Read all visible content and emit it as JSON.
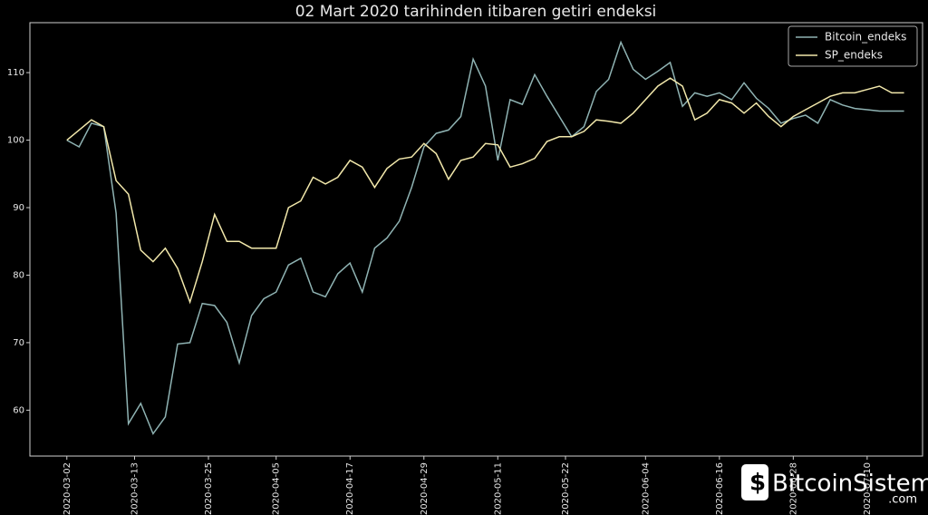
{
  "chart_data": {
    "type": "line",
    "title": "02 Mart 2020 tarihinden itibaren getiri endeksi",
    "x": [
      "2020-03-02",
      "2020-03-04",
      "2020-03-06",
      "2020-03-08",
      "2020-03-10",
      "2020-03-12",
      "2020-03-14",
      "2020-03-16",
      "2020-03-18",
      "2020-03-20",
      "2020-03-22",
      "2020-03-24",
      "2020-03-26",
      "2020-03-28",
      "2020-03-30",
      "2020-04-01",
      "2020-04-03",
      "2020-04-05",
      "2020-04-07",
      "2020-04-09",
      "2020-04-11",
      "2020-04-13",
      "2020-04-15",
      "2020-04-17",
      "2020-04-19",
      "2020-04-21",
      "2020-04-23",
      "2020-04-25",
      "2020-04-27",
      "2020-04-29",
      "2020-05-01",
      "2020-05-03",
      "2020-05-05",
      "2020-05-07",
      "2020-05-09",
      "2020-05-11",
      "2020-05-13",
      "2020-05-15",
      "2020-05-17",
      "2020-05-19",
      "2020-05-21",
      "2020-05-23",
      "2020-05-25",
      "2020-05-27",
      "2020-05-29",
      "2020-05-31",
      "2020-06-02",
      "2020-06-04",
      "2020-06-06",
      "2020-06-08",
      "2020-06-10",
      "2020-06-12",
      "2020-06-14",
      "2020-06-16",
      "2020-06-18",
      "2020-06-20",
      "2020-06-22",
      "2020-06-24",
      "2020-06-26",
      "2020-06-28",
      "2020-06-30",
      "2020-07-02",
      "2020-07-04",
      "2020-07-06",
      "2020-07-08",
      "2020-07-10",
      "2020-07-12",
      "2020-07-14",
      "2020-07-16"
    ],
    "series": [
      {
        "name": "Bitcoin_endeks",
        "color": "#8fb3b3",
        "values": [
          100,
          99,
          102.5,
          102,
          89.2,
          58,
          61,
          56.5,
          59,
          69.8,
          70,
          75.8,
          75.5,
          73,
          67,
          74,
          76.5,
          77.5,
          81.5,
          82.5,
          77.5,
          76.8,
          80.2,
          81.8,
          77.5,
          84,
          85.5,
          88,
          93,
          99,
          101,
          101.5,
          103.5,
          112,
          108,
          97,
          106,
          105.3,
          109.7,
          106.5,
          103.5,
          100.5,
          102,
          107.2,
          109,
          114.5,
          110.5,
          109,
          110.2,
          111.5,
          105,
          107,
          106.5,
          107,
          106,
          108.5,
          106.2,
          104.7,
          102.5,
          103.2,
          103.7,
          102.5,
          106,
          105.2,
          104.7,
          104.5,
          104.3,
          104.3,
          104.3
        ]
      },
      {
        "name": "SP_endeks",
        "color": "#f2e8ab",
        "values": [
          100,
          101.5,
          103,
          102,
          94,
          92,
          83.7,
          82,
          84,
          81,
          76,
          82,
          89,
          85,
          85,
          84,
          84,
          84,
          90,
          91,
          94.5,
          93.5,
          94.5,
          97,
          96,
          93,
          95.8,
          97.2,
          97.5,
          99.5,
          98,
          94.2,
          97,
          97.5,
          99.5,
          99.3,
          96,
          96.5,
          97.3,
          99.8,
          100.5,
          100.5,
          101.3,
          103,
          102.8,
          102.5,
          104,
          106,
          108,
          109.2,
          108,
          103,
          104,
          106,
          105.5,
          104,
          105.5,
          103.5,
          102,
          103.5,
          104.5,
          105.5,
          106.5,
          107,
          107,
          107.5,
          108,
          107,
          107
        ]
      }
    ],
    "xlim": [
      "2020-02-25",
      "2020-07-19"
    ],
    "xticks": [
      "2020-03-02",
      "2020-03-13",
      "2020-03-25",
      "2020-04-05",
      "2020-04-17",
      "2020-04-29",
      "2020-05-11",
      "2020-05-22",
      "2020-06-04",
      "2020-06-16",
      "2020-06-28",
      "2020-07-10"
    ],
    "ylim": [
      53.2,
      117.4
    ],
    "yticks": [
      60,
      70,
      80,
      90,
      100,
      110
    ],
    "legend": "upper right"
  },
  "watermark": {
    "name": "BitcoinSistemi",
    "suffix": ".com"
  }
}
